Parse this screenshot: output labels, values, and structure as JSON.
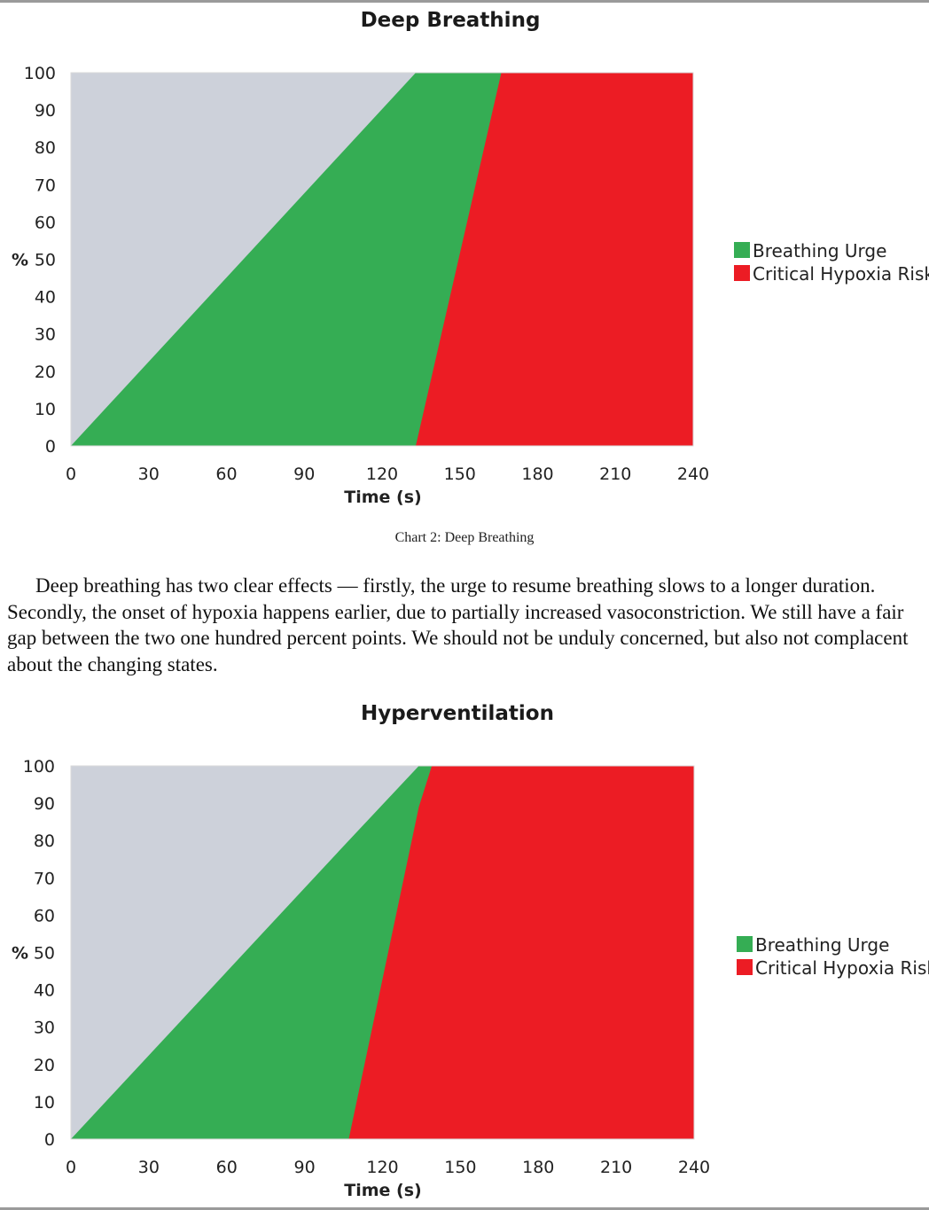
{
  "chart_data": [
    {
      "type": "area",
      "title": "Deep Breathing",
      "xlabel": "Time (s)",
      "ylabel": "%",
      "xlim": [
        0,
        240
      ],
      "ylim": [
        0,
        100
      ],
      "xticks": [
        0,
        30,
        60,
        90,
        120,
        150,
        180,
        210,
        240
      ],
      "yticks": [
        0,
        10,
        20,
        30,
        40,
        50,
        60,
        70,
        80,
        90,
        100
      ],
      "legend_position": "right",
      "background_color": "#cdd1da",
      "series": [
        {
          "name": "Breathing Urge",
          "color": "#35ad54",
          "x": [
            0,
            133,
            166,
            240
          ],
          "y": [
            0,
            100,
            100,
            100
          ]
        },
        {
          "name": "Critical Hypoxia Risk",
          "color": "#ec1c24",
          "x": [
            0,
            133,
            166,
            240
          ],
          "y": [
            0,
            0,
            100,
            100
          ]
        }
      ]
    },
    {
      "type": "area",
      "title": "Hyperventilation",
      "xlabel": "Time (s)",
      "ylabel": "%",
      "xlim": [
        0,
        240
      ],
      "ylim": [
        0,
        100
      ],
      "xticks": [
        0,
        30,
        60,
        90,
        120,
        150,
        180,
        210,
        240
      ],
      "yticks": [
        0,
        10,
        20,
        30,
        40,
        50,
        60,
        70,
        80,
        90,
        100
      ],
      "legend_position": "right",
      "background_color": "#cdd1da",
      "series": [
        {
          "name": "Breathing Urge",
          "color": "#35ad54",
          "x": [
            0,
            107,
            134,
            240
          ],
          "y": [
            0,
            80,
            100,
            100
          ]
        },
        {
          "name": "Critical Hypoxia Risk",
          "color": "#ec1c24",
          "x": [
            0,
            107,
            134,
            139,
            240
          ],
          "y": [
            0,
            0,
            89,
            100,
            100
          ]
        }
      ]
    }
  ],
  "caption": "Chart 2: Deep Breathing",
  "body_text": "Deep breathing has two clear effects — firstly, the urge to resume breathing slows to a longer duration. Secondly, the onset of hypoxia happens earlier, due to partially increased vasoconstriction. We still have a fair gap between the two one hundred percent points. We should not be unduly concerned, but also not complacent about the changing states."
}
